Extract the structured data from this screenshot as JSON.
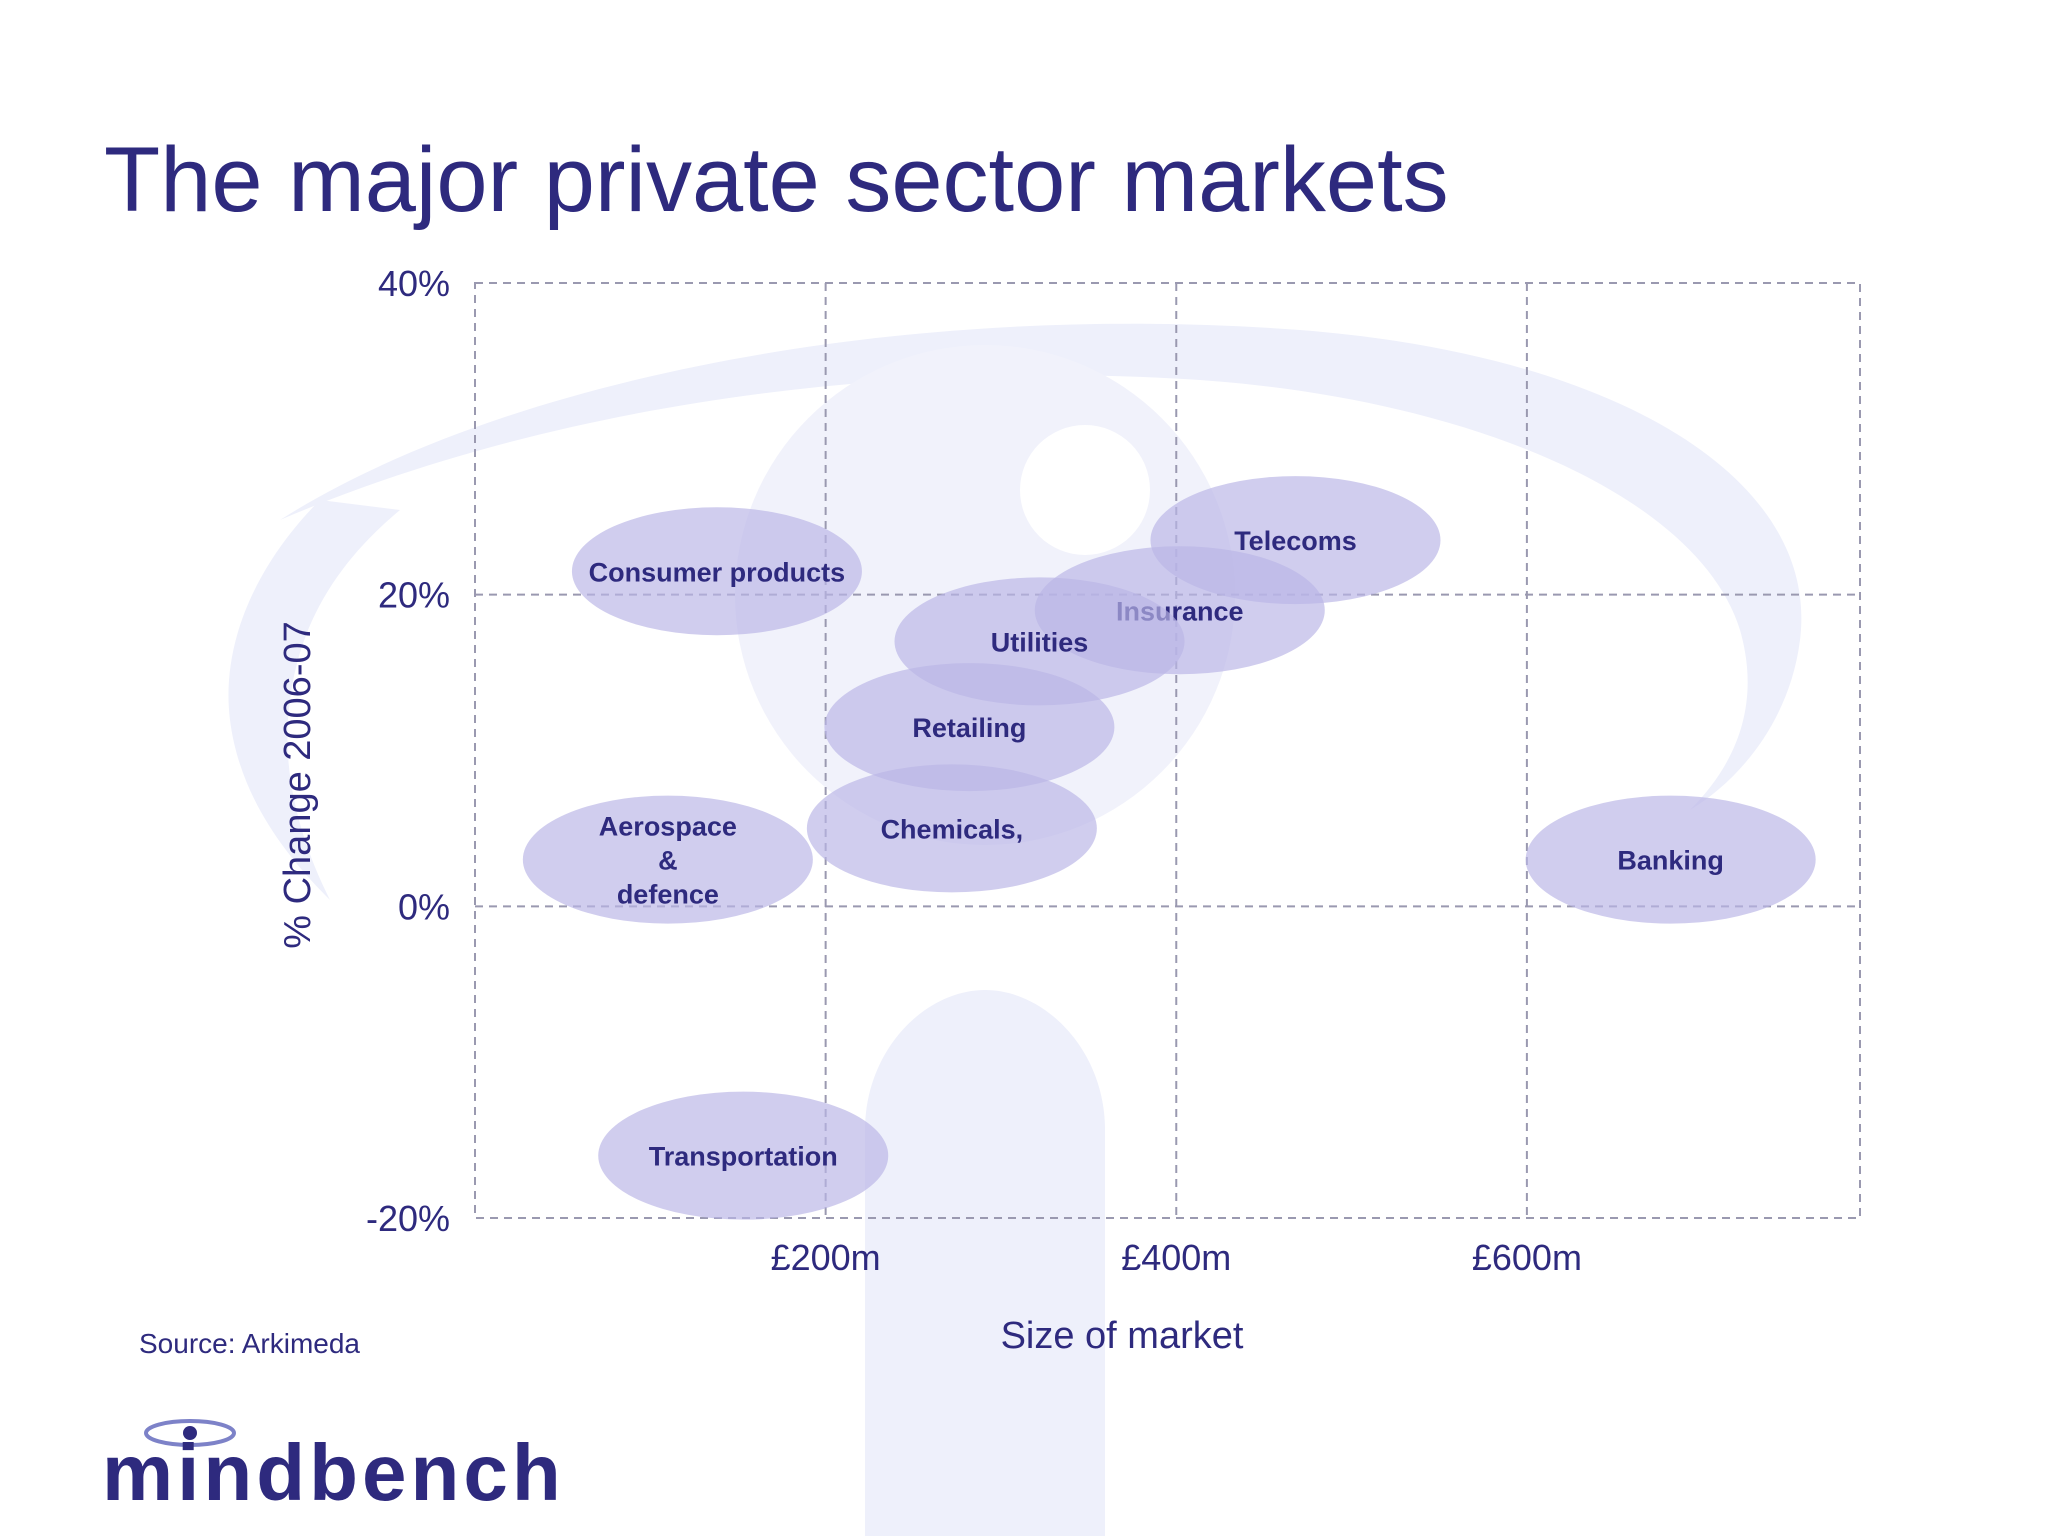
{
  "slide": {
    "title": "The major private sector markets",
    "source": "Source:  Arkimeda",
    "logo_text": "mindbench"
  },
  "colors": {
    "text": "#2e2a7e",
    "bubble": "#b9b6e6",
    "grid": "#9a99b0",
    "watermark": "#eef0fb"
  },
  "chart_data": {
    "type": "scatter",
    "title": "The major private sector markets",
    "xlabel": "Size of market",
    "ylabel": "% Change 2006-07",
    "xlim": [
      0,
      790
    ],
    "ylim": [
      -20,
      40
    ],
    "x_ticks": [
      {
        "value": 200,
        "label": "£200m"
      },
      {
        "value": 400,
        "label": "£400m"
      },
      {
        "value": 600,
        "label": "£600m"
      }
    ],
    "y_ticks": [
      {
        "value": -20,
        "label": "-20%"
      },
      {
        "value": 0,
        "label": "0%"
      },
      {
        "value": 20,
        "label": "20%"
      },
      {
        "value": 40,
        "label": "40%"
      }
    ],
    "grid": true,
    "points": [
      {
        "label": "Consumer products",
        "x": 138,
        "y": 21.5
      },
      {
        "label": "Telecoms",
        "x": 468,
        "y": 23.5
      },
      {
        "label": "Insurance",
        "x": 402,
        "y": 19
      },
      {
        "label": "Utilities",
        "x": 322,
        "y": 17
      },
      {
        "label": "Retailing",
        "x": 282,
        "y": 11.5
      },
      {
        "label": "Chemicals,",
        "x": 272,
        "y": 5
      },
      {
        "label": "Aerospace & defence",
        "x": 110,
        "y": 3,
        "label_lines": [
          "Aerospace",
          "&",
          "defence"
        ]
      },
      {
        "label": "Banking",
        "x": 682,
        "y": 3
      },
      {
        "label": "Transportation",
        "x": 153,
        "y": -16
      }
    ]
  }
}
